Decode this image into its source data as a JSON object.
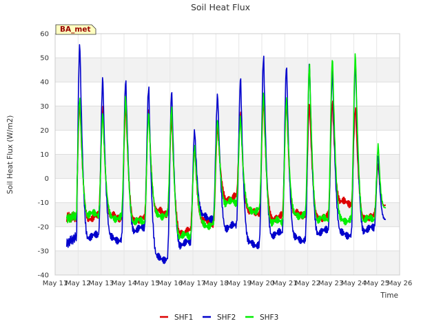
{
  "chart_data": {
    "type": "line",
    "title": "Soil Heat Flux",
    "xlabel": "Time",
    "ylabel": "Soil Heat Flux (W/m2)",
    "badge": "BA_met",
    "ylim": [
      -40,
      60
    ],
    "xlim": [
      11,
      26
    ],
    "yticks": [
      -40,
      -30,
      -20,
      -10,
      0,
      10,
      20,
      30,
      40,
      50,
      60
    ],
    "xticks": [
      11,
      12,
      13,
      14,
      15,
      16,
      17,
      18,
      19,
      20,
      21,
      22,
      23,
      24,
      25,
      26
    ],
    "xtick_labels": [
      "May 11",
      "May 12",
      "May 13",
      "May 14",
      "May 15",
      "May 16",
      "May 17",
      "May 18",
      "May 19",
      "May 20",
      "May 21",
      "May 22",
      "May 23",
      "May 24",
      "May 25",
      "May 26"
    ],
    "x_range_data": [
      11.5,
      25.4
    ],
    "series": [
      {
        "name": "SHF1",
        "color": "#dd0000",
        "daily_peaks": [
          31,
          30,
          29,
          29,
          25,
          13,
          21,
          28,
          32,
          32,
          31,
          32,
          29,
          7
        ],
        "daily_mins": [
          -16,
          -16,
          -17,
          -14,
          -22,
          -18,
          -8,
          -14,
          -16,
          -15,
          -16,
          -10,
          -16,
          -13
        ],
        "start_value": -16,
        "end_value": -11
      },
      {
        "name": "SHF2",
        "color": "#0000cc",
        "daily_peaks": [
          55,
          43,
          40,
          39,
          36,
          21,
          34,
          43,
          50,
          48,
          47,
          46,
          48,
          12
        ],
        "daily_mins": [
          -24,
          -25,
          -21,
          -33,
          -27,
          -16,
          -20,
          -27,
          -23,
          -25,
          -22,
          -23,
          -21,
          -18
        ],
        "start_value": -27,
        "end_value": -17
      },
      {
        "name": "SHF3",
        "color": "#00ee00",
        "daily_peaks": [
          33,
          28,
          33,
          28,
          29,
          14,
          24,
          26,
          35,
          34,
          47,
          51,
          51,
          16
        ],
        "daily_mins": [
          -15,
          -16,
          -18,
          -15,
          -24,
          -19,
          -10,
          -13,
          -18,
          -15,
          -17,
          -17,
          -17,
          -15
        ],
        "start_value": -17,
        "end_value": -12
      }
    ],
    "legend": [
      "SHF1",
      "SHF2",
      "SHF3"
    ],
    "legend_position": "bottom-center",
    "grid": true
  }
}
